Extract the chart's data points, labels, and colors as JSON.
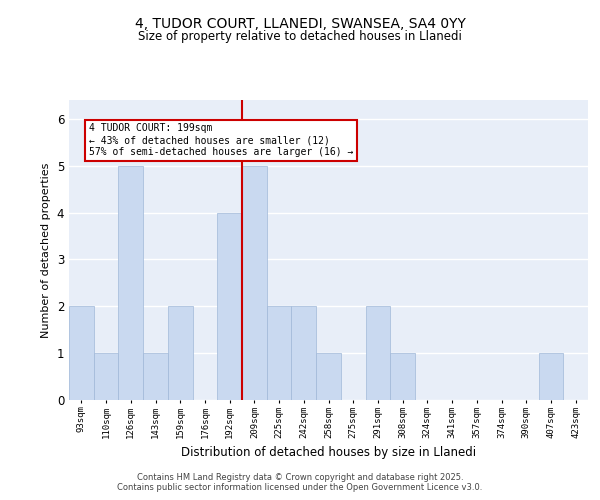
{
  "title_line1": "4, TUDOR COURT, LLANEDI, SWANSEA, SA4 0YY",
  "title_line2": "Size of property relative to detached houses in Llanedi",
  "xlabel": "Distribution of detached houses by size in Llanedi",
  "ylabel": "Number of detached properties",
  "categories": [
    "93sqm",
    "110sqm",
    "126sqm",
    "143sqm",
    "159sqm",
    "176sqm",
    "192sqm",
    "209sqm",
    "225sqm",
    "242sqm",
    "258sqm",
    "275sqm",
    "291sqm",
    "308sqm",
    "324sqm",
    "341sqm",
    "357sqm",
    "374sqm",
    "390sqm",
    "407sqm",
    "423sqm"
  ],
  "values": [
    2,
    1,
    5,
    1,
    2,
    0,
    4,
    5,
    2,
    2,
    1,
    0,
    2,
    1,
    0,
    0,
    0,
    0,
    0,
    1,
    0
  ],
  "bar_color": "#c9d9f0",
  "bar_edge_color": "#a0b8d8",
  "ref_line_index": 6.5,
  "ref_line_color": "#cc0000",
  "annotation_box_text": "4 TUDOR COURT: 199sqm\n← 43% of detached houses are smaller (12)\n57% of semi-detached houses are larger (16) →",
  "annotation_box_edge_color": "#cc0000",
  "ylim": [
    0,
    6.4
  ],
  "yticks": [
    0,
    1,
    2,
    3,
    4,
    5,
    6
  ],
  "bg_color": "#e8eef8",
  "grid_color": "#ffffff",
  "footer_line1": "Contains HM Land Registry data © Crown copyright and database right 2025.",
  "footer_line2": "Contains public sector information licensed under the Open Government Licence v3.0."
}
